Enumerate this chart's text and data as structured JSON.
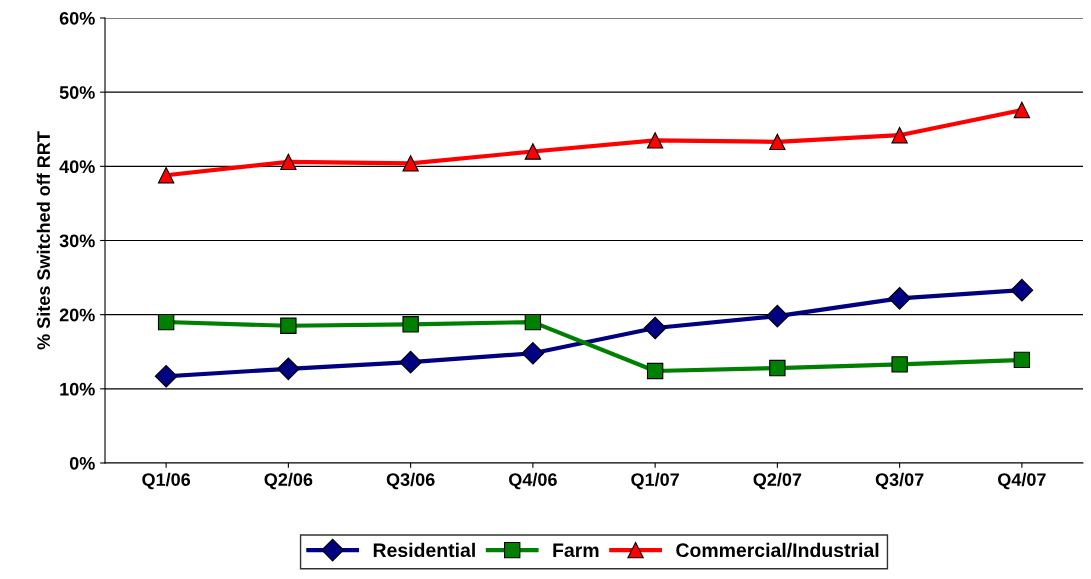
{
  "chart_data": {
    "type": "line",
    "ylabel": "% Sites Switched off RRT",
    "categories": [
      "Q1/06",
      "Q2/06",
      "Q3/06",
      "Q4/06",
      "Q1/07",
      "Q2/07",
      "Q3/07",
      "Q4/07"
    ],
    "series": [
      {
        "name": "Residential",
        "color": "#000080",
        "marker": "diamond",
        "values": [
          11.7,
          12.7,
          13.6,
          14.8,
          18.2,
          19.8,
          22.2,
          23.3
        ]
      },
      {
        "name": "Farm",
        "color": "#008000",
        "marker": "square",
        "values": [
          19.0,
          18.5,
          18.7,
          19.0,
          12.4,
          12.8,
          13.3,
          13.9
        ]
      },
      {
        "name": "Commercial/Industrial",
        "color": "#ff0000",
        "marker": "triangle",
        "values": [
          38.8,
          40.6,
          40.4,
          42.0,
          43.5,
          43.3,
          44.2,
          47.6
        ]
      }
    ],
    "ylim": [
      0,
      60
    ],
    "yticks": [
      {
        "value": 0,
        "label": "0%"
      },
      {
        "value": 10,
        "label": "10%"
      },
      {
        "value": 20,
        "label": "20%"
      },
      {
        "value": 30,
        "label": "30%"
      },
      {
        "value": 40,
        "label": "40%"
      },
      {
        "value": 50,
        "label": "50%"
      },
      {
        "value": 60,
        "label": "60%"
      }
    ],
    "grid": "y",
    "legend": "bottom",
    "line_style": "solid"
  }
}
